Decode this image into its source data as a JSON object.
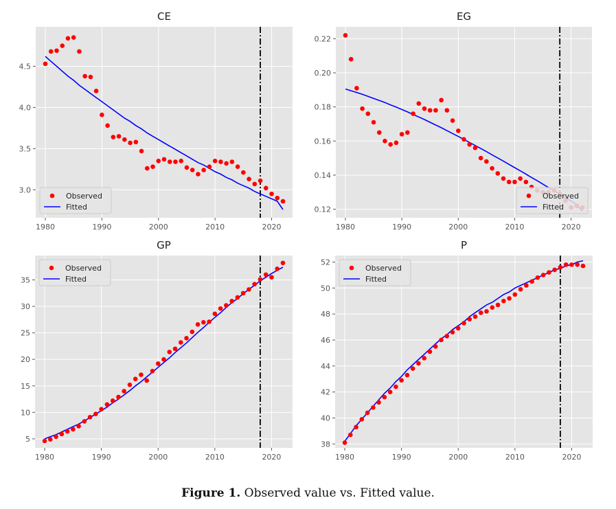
{
  "figure": {
    "caption_label": "Figure 1.",
    "caption_text": " Observed value vs. Fitted value."
  },
  "colors": {
    "panel_bg": "#e5e5e5",
    "grid": "#ffffff",
    "observed": "#ff0000",
    "fitted": "#0000ff",
    "split_line": "#000000"
  },
  "chart_data": [
    {
      "type": "scatter",
      "title": "CE",
      "xlabel": "",
      "ylabel": "",
      "grid": true,
      "legend_position": "lower-left",
      "split_year": 2018,
      "xlim": [
        1978.3,
        2023.7
      ],
      "ylim": [
        2.66,
        4.98
      ],
      "xticks": [
        1980,
        1990,
        2000,
        2010,
        2020
      ],
      "yticks": [
        3.0,
        3.5,
        4.0,
        4.5
      ],
      "ytick_labels": [
        "3.0",
        "3.5",
        "4.0",
        "4.5"
      ],
      "x": [
        1980,
        1981,
        1982,
        1983,
        1984,
        1985,
        1986,
        1987,
        1988,
        1989,
        1990,
        1991,
        1992,
        1993,
        1994,
        1995,
        1996,
        1997,
        1998,
        1999,
        2000,
        2001,
        2002,
        2003,
        2004,
        2005,
        2006,
        2007,
        2008,
        2009,
        2010,
        2011,
        2012,
        2013,
        2014,
        2015,
        2016,
        2017,
        2018,
        2019,
        2020,
        2021,
        2022
      ],
      "series": [
        {
          "name": "Observed",
          "kind": "scatter",
          "values": [
            4.53,
            4.68,
            4.69,
            4.75,
            4.84,
            4.85,
            4.68,
            4.38,
            4.37,
            4.2,
            3.91,
            3.78,
            3.64,
            3.65,
            3.61,
            3.57,
            3.58,
            3.47,
            3.26,
            3.28,
            3.35,
            3.37,
            3.34,
            3.34,
            3.35,
            3.27,
            3.24,
            3.19,
            3.24,
            3.28,
            3.35,
            3.34,
            3.32,
            3.34,
            3.28,
            3.21,
            3.13,
            3.07,
            3.11,
            3.02,
            2.95,
            2.9,
            2.86
          ]
        },
        {
          "name": "Fitted",
          "kind": "line",
          "values": [
            4.62,
            4.56,
            4.5,
            4.44,
            4.38,
            4.33,
            4.27,
            4.22,
            4.17,
            4.12,
            4.07,
            4.02,
            3.97,
            3.92,
            3.87,
            3.83,
            3.78,
            3.74,
            3.69,
            3.65,
            3.61,
            3.57,
            3.53,
            3.49,
            3.45,
            3.41,
            3.37,
            3.33,
            3.3,
            3.26,
            3.22,
            3.19,
            3.15,
            3.12,
            3.08,
            3.05,
            3.02,
            2.98,
            2.95,
            2.92,
            2.89,
            2.86,
            2.76
          ]
        }
      ]
    },
    {
      "type": "scatter",
      "title": "EG",
      "xlabel": "",
      "ylabel": "",
      "grid": true,
      "legend_position": "lower-right",
      "split_year": 2018,
      "xlim": [
        1978.3,
        2023.7
      ],
      "ylim": [
        0.115,
        0.227
      ],
      "xticks": [
        1980,
        1990,
        2000,
        2010,
        2020
      ],
      "yticks": [
        0.12,
        0.14,
        0.16,
        0.18,
        0.2,
        0.22
      ],
      "ytick_labels": [
        "0.12",
        "0.14",
        "0.16",
        "0.18",
        "0.20",
        "0.22"
      ],
      "x": [
        1980,
        1981,
        1982,
        1983,
        1984,
        1985,
        1986,
        1987,
        1988,
        1989,
        1990,
        1991,
        1992,
        1993,
        1994,
        1995,
        1996,
        1997,
        1998,
        1999,
        2000,
        2001,
        2002,
        2003,
        2004,
        2005,
        2006,
        2007,
        2008,
        2009,
        2010,
        2011,
        2012,
        2013,
        2014,
        2015,
        2016,
        2017,
        2018,
        2019,
        2020,
        2021,
        2022
      ],
      "series": [
        {
          "name": "Observed",
          "kind": "scatter",
          "values": [
            0.222,
            0.208,
            0.191,
            0.179,
            0.176,
            0.171,
            0.165,
            0.16,
            0.158,
            0.159,
            0.164,
            0.165,
            0.176,
            0.182,
            0.179,
            0.178,
            0.178,
            0.184,
            0.178,
            0.172,
            0.166,
            0.161,
            0.158,
            0.156,
            0.15,
            0.148,
            0.144,
            0.141,
            0.138,
            0.136,
            0.136,
            0.138,
            0.136,
            0.133,
            0.131,
            0.13,
            0.13,
            0.131,
            0.129,
            0.125,
            0.121,
            0.122,
            0.121
          ]
        },
        {
          "name": "Fitted",
          "kind": "line",
          "values": [
            0.1905,
            0.1895,
            0.1885,
            0.1874,
            0.1862,
            0.185,
            0.1838,
            0.1826,
            0.1812,
            0.1799,
            0.1785,
            0.1771,
            0.1756,
            0.1741,
            0.1726,
            0.171,
            0.1694,
            0.1678,
            0.1661,
            0.1644,
            0.1627,
            0.1609,
            0.1592,
            0.1574,
            0.1556,
            0.1538,
            0.1519,
            0.1501,
            0.1482,
            0.1463,
            0.1444,
            0.1425,
            0.1406,
            0.1386,
            0.1367,
            0.1347,
            0.1327,
            0.1308,
            0.1288,
            0.1268,
            0.1248,
            0.1228,
            0.1189
          ]
        }
      ]
    },
    {
      "type": "scatter",
      "title": "GP",
      "xlabel": "",
      "ylabel": "",
      "grid": true,
      "legend_position": "upper-left",
      "split_year": 2018,
      "xlim": [
        1978.3,
        2023.7
      ],
      "ylim": [
        3.3,
        39.6
      ],
      "xticks": [
        1980,
        1990,
        2000,
        2010,
        2020
      ],
      "yticks": [
        5,
        10,
        15,
        20,
        25,
        30,
        35
      ],
      "ytick_labels": [
        "5",
        "10",
        "15",
        "20",
        "25",
        "30",
        "35"
      ],
      "x": [
        1980,
        1981,
        1982,
        1983,
        1984,
        1985,
        1986,
        1987,
        1988,
        1989,
        1990,
        1991,
        1992,
        1993,
        1994,
        1995,
        1996,
        1997,
        1998,
        1999,
        2000,
        2001,
        2002,
        2003,
        2004,
        2005,
        2006,
        2007,
        2008,
        2009,
        2010,
        2011,
        2012,
        2013,
        2014,
        2015,
        2016,
        2017,
        2018,
        2019,
        2020,
        2021,
        2022
      ],
      "series": [
        {
          "name": "Observed",
          "kind": "scatter",
          "values": [
            4.6,
            4.9,
            5.4,
            5.9,
            6.4,
            6.8,
            7.4,
            8.3,
            9.1,
            9.7,
            10.6,
            11.5,
            12.2,
            12.9,
            14.0,
            15.2,
            16.3,
            17.1,
            16.0,
            17.8,
            19.2,
            20.0,
            21.4,
            22.0,
            23.2,
            24.0,
            25.2,
            26.6,
            27.0,
            27.1,
            28.6,
            29.6,
            30.2,
            31.0,
            31.7,
            32.5,
            33.2,
            34.2,
            35.1,
            36.0,
            35.5,
            37.1,
            38.2
          ]
        },
        {
          "name": "Fitted",
          "kind": "line",
          "values": [
            5.0,
            5.4,
            5.8,
            6.3,
            6.8,
            7.3,
            7.8,
            8.4,
            9.0,
            9.7,
            10.3,
            11.0,
            11.8,
            12.5,
            13.3,
            14.1,
            15.0,
            15.8,
            16.7,
            17.6,
            18.5,
            19.4,
            20.3,
            21.3,
            22.2,
            23.1,
            24.1,
            25.1,
            26.0,
            27.0,
            27.9,
            28.8,
            29.8,
            30.7,
            31.5,
            32.4,
            33.2,
            34.0,
            34.8,
            35.5,
            36.2,
            36.8,
            37.4
          ]
        }
      ]
    },
    {
      "type": "scatter",
      "title": "P",
      "xlabel": "",
      "ylabel": "",
      "grid": true,
      "legend_position": "upper-left",
      "split_year": 2018,
      "xlim": [
        1978.3,
        2023.7
      ],
      "ylim": [
        37.7,
        52.5
      ],
      "xticks": [
        1980,
        1990,
        2000,
        2010,
        2020
      ],
      "yticks": [
        38,
        40,
        42,
        44,
        46,
        48,
        50,
        52
      ],
      "ytick_labels": [
        "38",
        "40",
        "42",
        "44",
        "46",
        "48",
        "50",
        "52"
      ],
      "x": [
        1980,
        1981,
        1982,
        1983,
        1984,
        1985,
        1986,
        1987,
        1988,
        1989,
        1990,
        1991,
        1992,
        1993,
        1994,
        1995,
        1996,
        1997,
        1998,
        1999,
        2000,
        2001,
        2002,
        2003,
        2004,
        2005,
        2006,
        2007,
        2008,
        2009,
        2010,
        2011,
        2012,
        2013,
        2014,
        2015,
        2016,
        2017,
        2018,
        2019,
        2020,
        2021,
        2022
      ],
      "series": [
        {
          "name": "Observed",
          "kind": "scatter",
          "values": [
            38.1,
            38.7,
            39.3,
            39.9,
            40.4,
            40.8,
            41.2,
            41.6,
            42.0,
            42.4,
            42.9,
            43.3,
            43.8,
            44.2,
            44.6,
            45.1,
            45.5,
            46.0,
            46.3,
            46.6,
            46.9,
            47.3,
            47.6,
            47.8,
            48.1,
            48.2,
            48.5,
            48.7,
            49.0,
            49.2,
            49.5,
            49.9,
            50.2,
            50.5,
            50.8,
            51.0,
            51.2,
            51.4,
            51.6,
            51.8,
            51.8,
            51.8,
            51.7
          ]
        },
        {
          "name": "Fitted",
          "kind": "line",
          "values": [
            38.2,
            38.8,
            39.4,
            39.9,
            40.4,
            40.9,
            41.4,
            41.9,
            42.3,
            42.8,
            43.2,
            43.7,
            44.1,
            44.5,
            44.9,
            45.3,
            45.7,
            46.1,
            46.4,
            46.8,
            47.1,
            47.4,
            47.8,
            48.1,
            48.4,
            48.7,
            48.9,
            49.2,
            49.5,
            49.7,
            50.0,
            50.2,
            50.4,
            50.6,
            50.8,
            51.0,
            51.2,
            51.4,
            51.5,
            51.7,
            51.8,
            52.0,
            52.1
          ]
        }
      ]
    }
  ]
}
